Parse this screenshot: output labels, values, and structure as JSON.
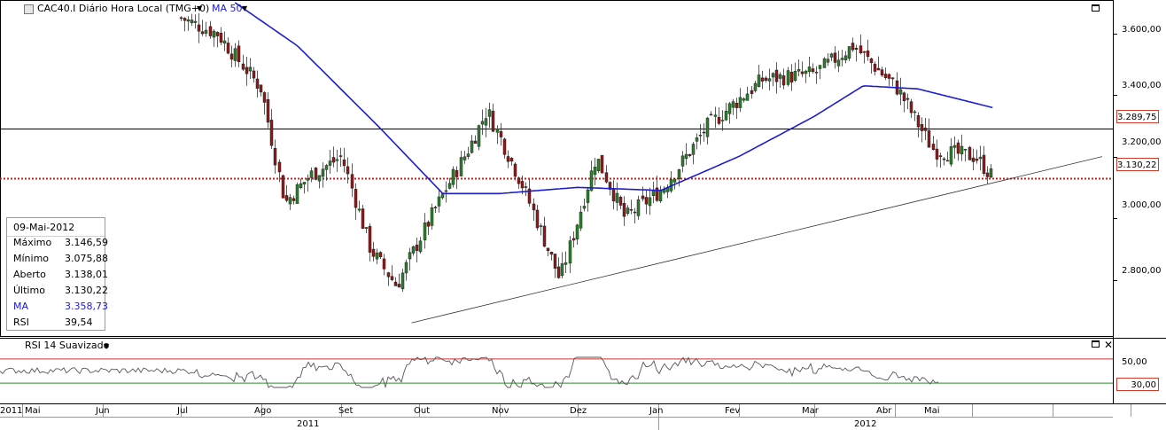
{
  "header": {
    "symbol_label": "CAC40.I Diário Hora Local (TMG+0)",
    "ma_label": "MA 50",
    "dropdown_icon": "triangle-down-icon"
  },
  "info_box": {
    "date": "09-Mai-2012",
    "rows": [
      {
        "label": "Máximo",
        "value": "3.146,59"
      },
      {
        "label": "Mínimo",
        "value": "3.075,88"
      },
      {
        "label": "Aberto",
        "value": "3.138,01"
      },
      {
        "label": "Último",
        "value": "3.130,22"
      },
      {
        "label": "MA",
        "value": "3.358,73"
      },
      {
        "label": "RSI",
        "value": "39,54"
      }
    ]
  },
  "price_axis": {
    "ticks": [
      "3.600,00",
      "3.400,00",
      "3.200,00",
      "3.000,00",
      "2.800,00"
    ],
    "tick_values": [
      3600,
      3400,
      3200,
      3000,
      2800
    ],
    "horizontal_line_value": "3.289,75",
    "last_price_value": "3.130,22"
  },
  "rsi_panel": {
    "title": "RSI 14 Suavizado",
    "tick": "50,00",
    "level_label": "30,00",
    "upper_level": 70,
    "lower_level": 30
  },
  "time_axis": {
    "months": [
      "2011",
      "Mai",
      "Jun",
      "Jul",
      "Ago",
      "Set",
      "Out",
      "Nov",
      "Dez",
      "Jan",
      "Fev",
      "Mar",
      "Abr",
      "Mai"
    ],
    "years": [
      "2011",
      "2012"
    ]
  },
  "colors": {
    "up_candle": "#2e7d2e",
    "down_candle": "#8b1a1a",
    "ma_line": "#1c1cd0",
    "last_price_line": "#cc1f1f",
    "rsi_line": "#555555",
    "rsi_upper": "#cc3333",
    "rsi_lower": "#2a8a2a"
  },
  "chart_data": {
    "type": "candlestick",
    "series_name": "CAC40.I",
    "ylim": [
      2620,
      3700
    ],
    "key_points": [
      {
        "date": "2011-07-01",
        "close": 3650
      },
      {
        "date": "2011-07-15",
        "close": 3600
      },
      {
        "date": "2011-08-01",
        "close": 3420
      },
      {
        "date": "2011-08-10",
        "close": 3050
      },
      {
        "date": "2011-08-20",
        "close": 3140
      },
      {
        "date": "2011-09-01",
        "close": 3200
      },
      {
        "date": "2011-09-12",
        "close": 2900
      },
      {
        "date": "2011-09-22",
        "close": 2780
      },
      {
        "date": "2011-10-05",
        "close": 3000
      },
      {
        "date": "2011-10-20",
        "close": 3230
      },
      {
        "date": "2011-10-27",
        "close": 3350
      },
      {
        "date": "2011-11-10",
        "close": 3100
      },
      {
        "date": "2011-11-24",
        "close": 2800
      },
      {
        "date": "2011-12-08",
        "close": 3200
      },
      {
        "date": "2011-12-19",
        "close": 3000
      },
      {
        "date": "2012-01-03",
        "close": 3100
      },
      {
        "date": "2012-01-20",
        "close": 3300
      },
      {
        "date": "2012-02-10",
        "close": 3450
      },
      {
        "date": "2012-03-01",
        "close": 3470
      },
      {
        "date": "2012-03-16",
        "close": 3560
      },
      {
        "date": "2012-04-02",
        "close": 3420
      },
      {
        "date": "2012-04-16",
        "close": 3220
      },
      {
        "date": "2012-05-02",
        "close": 3200
      },
      {
        "date": "2012-05-09",
        "close": 3130
      }
    ],
    "ma50_points": [
      {
        "date": "2011-07-22",
        "value": 3700
      },
      {
        "date": "2011-08-15",
        "value": 3560
      },
      {
        "date": "2011-09-15",
        "value": 3300
      },
      {
        "date": "2011-10-10",
        "value": 3080
      },
      {
        "date": "2011-11-01",
        "value": 3080
      },
      {
        "date": "2011-12-01",
        "value": 3100
      },
      {
        "date": "2012-01-02",
        "value": 3090
      },
      {
        "date": "2012-02-01",
        "value": 3200
      },
      {
        "date": "2012-03-01",
        "value": 3330
      },
      {
        "date": "2012-03-20",
        "value": 3430
      },
      {
        "date": "2012-04-10",
        "value": 3420
      },
      {
        "date": "2012-05-09",
        "value": 3358.73
      }
    ],
    "trendline": [
      {
        "date": "2011-09-28",
        "value": 2660
      },
      {
        "date": "2012-06-20",
        "value": 3200
      }
    ],
    "horizontal_line": 3289.75,
    "last_price": 3130.22,
    "rsi_lower": 30,
    "rsi_upper": 70,
    "grid": true
  }
}
